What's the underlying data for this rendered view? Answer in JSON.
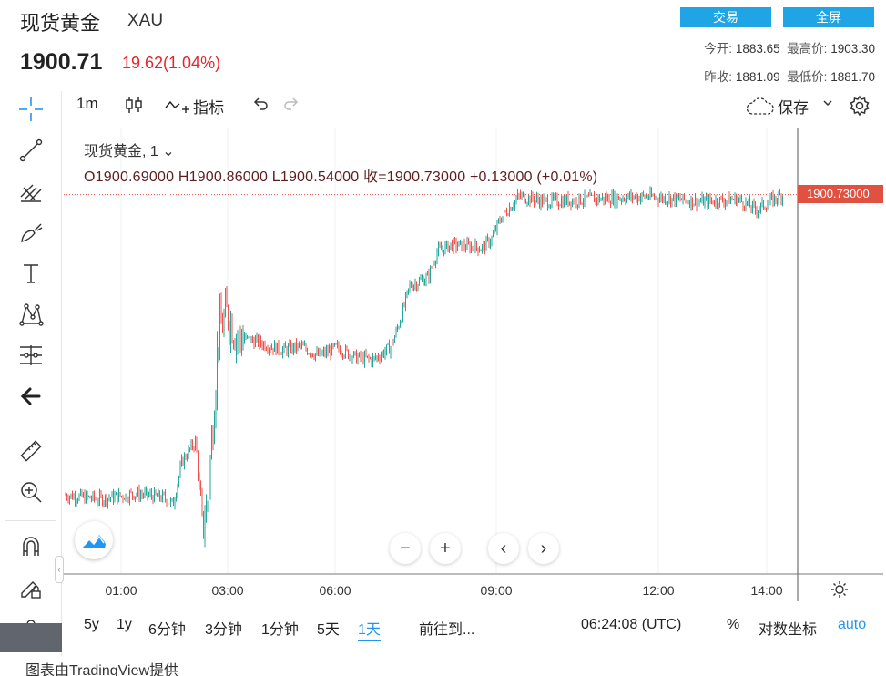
{
  "header": {
    "title": "现货黄金",
    "symbol": "XAU",
    "price": "1900.71",
    "change": "19.62(1.04%)",
    "trade_btn": "交易",
    "fullscreen_btn": "全屏",
    "stats": {
      "open_label": "今开:",
      "open": "1883.65",
      "high_label": "最高价:",
      "high": "1903.30",
      "prev_close_label": "昨收:",
      "prev_close": "1881.09",
      "low_label": "最低价:",
      "low": "1881.70"
    }
  },
  "toolbar": {
    "interval": "1m",
    "indicators": "指标",
    "save": "保存"
  },
  "left_tools": [
    "crosshair-icon",
    "trend-line-icon",
    "pitchfork-icon",
    "brush-icon",
    "text-icon",
    "pattern-icon",
    "prediction-icon",
    "back-arrow-icon",
    "ruler-icon",
    "zoom-in-icon",
    "magnet-icon",
    "lock-drawing-icon",
    "lock-icon"
  ],
  "legend": {
    "name": "现货黄金, 1",
    "ohlc": "O1900.69000  H1900.86000  L1900.54000  收=1900.73000  +0.13000 (+0.01%)"
  },
  "price_label": "1900.73000",
  "chart_data": {
    "type": "line",
    "title": "",
    "x_ticks": [
      "01:00",
      "03:00",
      "06:00",
      "09:00",
      "12:00",
      "14:00"
    ],
    "ylim": [
      1874,
      1903
    ],
    "last": 1900.73,
    "colors": {
      "up": "#26a69a",
      "down": "#ef5350",
      "line": "#8a8a8a"
    }
  },
  "bottom": {
    "ranges": [
      "5y",
      "1y",
      "6分钟",
      "3分钟",
      "1分钟",
      "5天",
      "1天"
    ],
    "goto": "前往到...",
    "time": "06:24:08 (UTC)",
    "percent": "%",
    "log": "对数坐标",
    "auto": "auto"
  },
  "credit": "图表由TradingView提供"
}
